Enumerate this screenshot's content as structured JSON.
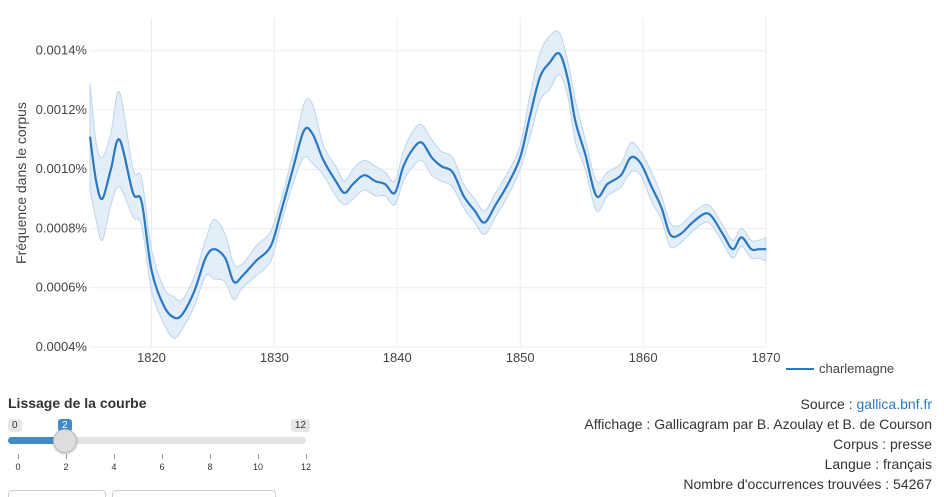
{
  "chart_data": {
    "type": "line",
    "xlabel": "",
    "ylabel": "Fréquence dans le corpus",
    "xlim": [
      1815,
      1870
    ],
    "ylim": [
      0.0004,
      0.00147
    ],
    "x_ticks": [
      1820,
      1830,
      1840,
      1850,
      1860,
      1870
    ],
    "x_tick_labels": [
      "1820",
      "1830",
      "1840",
      "1850",
      "1860",
      "1870"
    ],
    "y_ticks": [
      0.0004,
      0.0006,
      0.0008,
      0.001,
      0.0012,
      0.0014
    ],
    "y_tick_labels": [
      "0.0004%",
      "0.0006%",
      "0.0008%",
      "0.0010%",
      "0.0012%",
      "0.0014%"
    ],
    "grid": true,
    "legend_position": "bottom-right",
    "series": [
      {
        "name": "charlemagne",
        "color": "#2a78c2",
        "band_color": "#dbe8f5",
        "x": [
          1815,
          1815.5,
          1816,
          1816.7,
          1817.4,
          1818.5,
          1819.2,
          1820,
          1821,
          1821.8,
          1822.5,
          1823.5,
          1824.4,
          1825.1,
          1826,
          1826.7,
          1827.4,
          1828.5,
          1829.7,
          1830.5,
          1831.5,
          1832.4,
          1833.1,
          1834,
          1835,
          1835.7,
          1836.4,
          1837.3,
          1838.2,
          1839,
          1839.8,
          1840.5,
          1841.3,
          1842,
          1842.8,
          1843.6,
          1844.5,
          1845.4,
          1846.3,
          1847.1,
          1848,
          1849,
          1850,
          1850.8,
          1851.6,
          1852.4,
          1853.2,
          1853.9,
          1854.5,
          1855.3,
          1856.2,
          1857.1,
          1858.2,
          1859,
          1859.8,
          1860.7,
          1861.5,
          1862.2,
          1863,
          1864,
          1865,
          1865.6,
          1866.5,
          1867.3,
          1868,
          1868.8,
          1869.4,
          1870
        ],
        "values": [
          0.00111,
          0.00096,
          0.0009,
          0.001,
          0.0011,
          0.00092,
          0.00089,
          0.00066,
          0.00054,
          0.0005,
          0.00051,
          0.00059,
          0.0007,
          0.00073,
          0.0007,
          0.00062,
          0.00064,
          0.00069,
          0.00074,
          0.00085,
          0.001,
          0.00113,
          0.00112,
          0.00103,
          0.00096,
          0.00092,
          0.00095,
          0.00098,
          0.00096,
          0.00095,
          0.00092,
          0.00101,
          0.00107,
          0.00109,
          0.00104,
          0.00101,
          0.00099,
          0.00091,
          0.00086,
          0.00082,
          0.00088,
          0.00095,
          0.00104,
          0.00118,
          0.00131,
          0.00136,
          0.00139,
          0.0013,
          0.00116,
          0.00105,
          0.00091,
          0.00095,
          0.00098,
          0.00104,
          0.00102,
          0.00094,
          0.00087,
          0.00078,
          0.00078,
          0.00082,
          0.00085,
          0.00084,
          0.00078,
          0.00073,
          0.00077,
          0.00073,
          0.00073,
          0.00073
        ],
        "band_halfwidth": [
          0.00018,
          0.00013,
          0.00014,
          0.00012,
          0.00016,
          8e-05,
          8e-05,
          7e-05,
          6e-05,
          7e-05,
          5e-05,
          5e-05,
          6e-05,
          0.0001,
          8e-05,
          6e-05,
          4e-05,
          5e-05,
          5e-05,
          4e-05,
          5e-05,
          9e-05,
          0.0001,
          5e-05,
          5e-05,
          4e-05,
          5e-05,
          5e-05,
          5e-05,
          4e-05,
          4e-05,
          5e-05,
          6e-05,
          6e-05,
          6e-05,
          5e-05,
          5e-05,
          4e-05,
          4e-05,
          4e-05,
          4e-05,
          4e-05,
          4e-05,
          7e-05,
          8e-05,
          9e-05,
          7e-05,
          6e-05,
          7e-05,
          5e-05,
          5e-05,
          4e-05,
          4e-05,
          5e-05,
          4e-05,
          5e-05,
          4e-05,
          4e-05,
          3e-05,
          3e-05,
          3e-05,
          3e-05,
          3e-05,
          3e-05,
          3e-05,
          3e-05,
          3e-05,
          4e-05
        ]
      }
    ]
  },
  "smoothing": {
    "title": "Lissage de la courbe",
    "min_label": "0",
    "max_label": "12",
    "current_label": "2",
    "value": 2,
    "min": 0,
    "max": 12,
    "ticks": [
      "0",
      "2",
      "4",
      "6",
      "8",
      "10",
      "12"
    ]
  },
  "info": {
    "source_prefix": "Source : ",
    "source_link": "gallica.bnf.fr",
    "display_line": "Affichage : Gallicagram par B. Azoulay et B. de Courson",
    "corpus_line": "Corpus : presse",
    "language_line": "Langue : français",
    "occurrences_line": "Nombre d'occurrences trouvées : 54267"
  }
}
